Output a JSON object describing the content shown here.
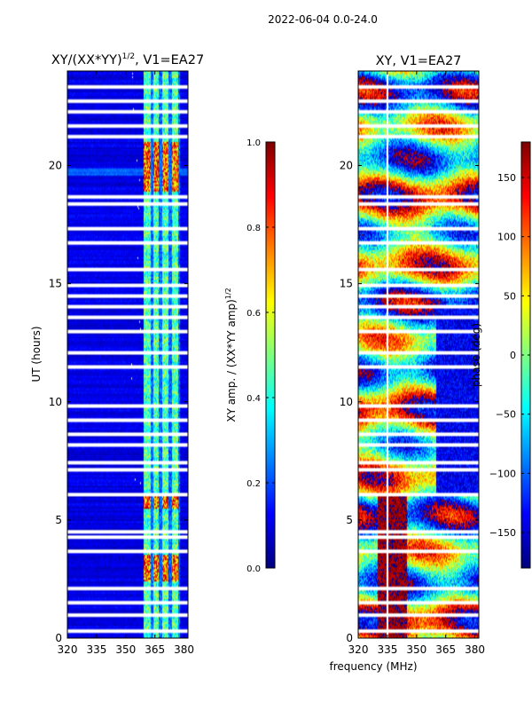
{
  "suptitle": "2022-06-04 0.0-24.0",
  "xlabel": "frequency (MHz)",
  "chart_data": [
    {
      "type": "heatmap",
      "title": "XY/(XX*YY)",
      "title_superscript": "1/2",
      "title_suffix": ", V1=EA27",
      "xlabel": "",
      "ylabel": "UT (hours)",
      "xlim": [
        320,
        382
      ],
      "ylim": [
        0,
        24
      ],
      "xticks": [
        320,
        335,
        350,
        365,
        380
      ],
      "yticks": [
        0,
        5,
        10,
        15,
        20
      ],
      "active_band_mhz": [
        [
          359,
          363
        ],
        [
          364,
          367
        ],
        [
          369,
          372
        ],
        [
          374,
          377
        ]
      ],
      "high_amplitude_hours": [
        [
          2.4,
          3.5
        ],
        [
          5.5,
          6.0
        ],
        [
          18.9,
          21.0
        ]
      ],
      "flagged_hours": [
        0.3,
        0.95,
        1.5,
        2.1,
        3.7,
        4.3,
        4.5,
        6.1,
        7.1,
        7.4,
        8.2,
        8.6,
        9.2,
        9.8,
        11.5,
        12.1,
        13.0,
        13.6,
        14.0,
        14.5,
        14.9,
        15.6,
        16.7,
        17.3,
        18.4,
        18.7,
        21.2,
        21.7,
        22.3,
        22.7,
        23.3
      ],
      "colorbar": {
        "label": "XY amp. / (XX*YY amp)",
        "label_superscript": "1/2",
        "range": [
          0.0,
          1.0
        ],
        "ticks": [
          "0.0",
          "0.2",
          "0.4",
          "0.6",
          "0.8",
          "1.0"
        ]
      }
    },
    {
      "type": "heatmap",
      "title": "XY, V1=EA27",
      "xlabel": "frequency (MHz)",
      "ylabel": "",
      "xlim": [
        320,
        382
      ],
      "ylim": [
        0,
        24
      ],
      "xticks": [
        320,
        335,
        350,
        365,
        380
      ],
      "yticks": [
        0,
        5,
        10,
        15,
        20
      ],
      "phase_range_deg": [
        -180,
        180
      ],
      "colorbar": {
        "label": "phase (deg)",
        "range": [
          -180,
          180
        ],
        "ticks": [
          "150",
          "100",
          "50",
          "0",
          "−50",
          "−100",
          "−150"
        ]
      }
    }
  ]
}
